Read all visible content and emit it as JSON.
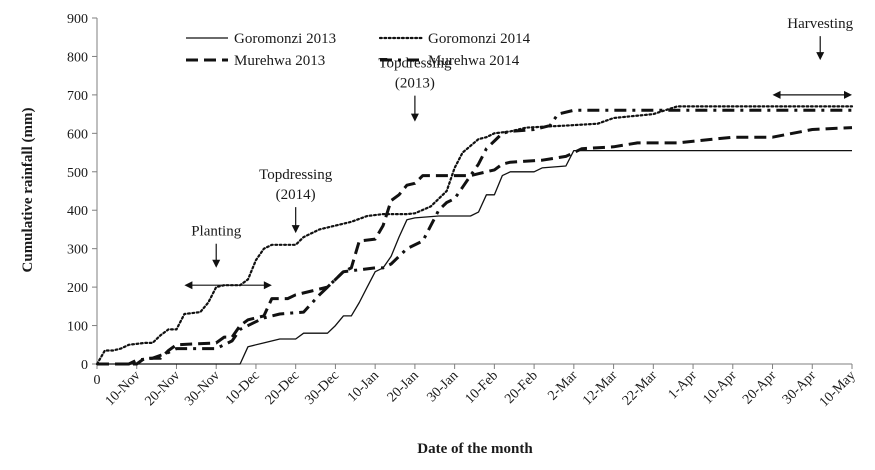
{
  "chart_data": {
    "type": "line",
    "title": "",
    "xlabel": "Date of the month",
    "ylabel": "Cumulative rainfall (mm)",
    "ylim": [
      0,
      900
    ],
    "yticks": [
      0,
      100,
      200,
      300,
      400,
      500,
      600,
      700,
      800,
      900
    ],
    "xlim": [
      0,
      190
    ],
    "xtick_labels": [
      {
        "t": 0,
        "label": "0"
      },
      {
        "t": 10,
        "label": "10-Nov"
      },
      {
        "t": 20,
        "label": "20-Nov"
      },
      {
        "t": 30,
        "label": "30-Nov"
      },
      {
        "t": 40,
        "label": "10-Dec"
      },
      {
        "t": 50,
        "label": "20-Dec"
      },
      {
        "t": 60,
        "label": "30-Dec"
      },
      {
        "t": 70,
        "label": "10-Jan"
      },
      {
        "t": 80,
        "label": "20-Jan"
      },
      {
        "t": 90,
        "label": "30-Jan"
      },
      {
        "t": 100,
        "label": "10-Feb"
      },
      {
        "t": 110,
        "label": "20-Feb"
      },
      {
        "t": 120,
        "label": "2-Mar"
      },
      {
        "t": 130,
        "label": "12-Mar"
      },
      {
        "t": 140,
        "label": "22-Mar"
      },
      {
        "t": 150,
        "label": "1-Apr"
      },
      {
        "t": 160,
        "label": "10-Apr"
      },
      {
        "t": 170,
        "label": "20-Apr"
      },
      {
        "t": 180,
        "label": "30-Apr"
      },
      {
        "t": 190,
        "label": "10-May"
      }
    ],
    "grid": false,
    "legend_position": "top",
    "series": [
      {
        "name": "Goromonzi 2013",
        "style": "solid",
        "points": [
          [
            0,
            0
          ],
          [
            36,
            0
          ],
          [
            38,
            45
          ],
          [
            42,
            55
          ],
          [
            46,
            65
          ],
          [
            50,
            65
          ],
          [
            52,
            80
          ],
          [
            58,
            80
          ],
          [
            60,
            100
          ],
          [
            62,
            125
          ],
          [
            64,
            125
          ],
          [
            66,
            160
          ],
          [
            68,
            200
          ],
          [
            70,
            240
          ],
          [
            72,
            250
          ],
          [
            74,
            280
          ],
          [
            76,
            330
          ],
          [
            78,
            375
          ],
          [
            80,
            380
          ],
          [
            86,
            385
          ],
          [
            90,
            385
          ],
          [
            94,
            385
          ],
          [
            96,
            395
          ],
          [
            98,
            440
          ],
          [
            100,
            440
          ],
          [
            102,
            490
          ],
          [
            104,
            500
          ],
          [
            110,
            500
          ],
          [
            112,
            510
          ],
          [
            118,
            515
          ],
          [
            120,
            555
          ],
          [
            130,
            555
          ],
          [
            190,
            555
          ]
        ]
      },
      {
        "name": "Goromonzi 2014",
        "style": "dotted",
        "points": [
          [
            0,
            0
          ],
          [
            2,
            35
          ],
          [
            4,
            35
          ],
          [
            6,
            40
          ],
          [
            8,
            50
          ],
          [
            12,
            55
          ],
          [
            14,
            55
          ],
          [
            16,
            75
          ],
          [
            18,
            90
          ],
          [
            20,
            90
          ],
          [
            22,
            130
          ],
          [
            26,
            135
          ],
          [
            28,
            160
          ],
          [
            30,
            200
          ],
          [
            32,
            205
          ],
          [
            36,
            205
          ],
          [
            38,
            220
          ],
          [
            40,
            270
          ],
          [
            42,
            300
          ],
          [
            44,
            310
          ],
          [
            50,
            310
          ],
          [
            52,
            330
          ],
          [
            56,
            350
          ],
          [
            60,
            360
          ],
          [
            64,
            370
          ],
          [
            68,
            385
          ],
          [
            72,
            390
          ],
          [
            76,
            390
          ],
          [
            78,
            390
          ],
          [
            80,
            392
          ],
          [
            84,
            410
          ],
          [
            88,
            450
          ],
          [
            90,
            510
          ],
          [
            92,
            550
          ],
          [
            96,
            585
          ],
          [
            98,
            590
          ],
          [
            100,
            600
          ],
          [
            104,
            605
          ],
          [
            108,
            615
          ],
          [
            118,
            620
          ],
          [
            126,
            625
          ],
          [
            130,
            640
          ],
          [
            140,
            650
          ],
          [
            146,
            670
          ],
          [
            190,
            670
          ]
        ]
      },
      {
        "name": "Murehwa 2013",
        "style": "dashed",
        "points": [
          [
            0,
            0
          ],
          [
            10,
            0
          ],
          [
            12,
            15
          ],
          [
            16,
            15
          ],
          [
            18,
            35
          ],
          [
            20,
            50
          ],
          [
            30,
            55
          ],
          [
            32,
            70
          ],
          [
            34,
            70
          ],
          [
            36,
            100
          ],
          [
            38,
            115
          ],
          [
            42,
            125
          ],
          [
            44,
            170
          ],
          [
            48,
            170
          ],
          [
            50,
            180
          ],
          [
            54,
            190
          ],
          [
            58,
            200
          ],
          [
            62,
            240
          ],
          [
            64,
            250
          ],
          [
            66,
            320
          ],
          [
            70,
            325
          ],
          [
            72,
            360
          ],
          [
            74,
            425
          ],
          [
            76,
            440
          ],
          [
            78,
            465
          ],
          [
            80,
            470
          ],
          [
            82,
            490
          ],
          [
            94,
            490
          ],
          [
            96,
            495
          ],
          [
            98,
            500
          ],
          [
            100,
            505
          ],
          [
            102,
            520
          ],
          [
            104,
            525
          ],
          [
            112,
            530
          ],
          [
            118,
            540
          ],
          [
            120,
            550
          ],
          [
            122,
            560
          ],
          [
            130,
            565
          ],
          [
            136,
            575
          ],
          [
            146,
            575
          ],
          [
            160,
            590
          ],
          [
            170,
            590
          ],
          [
            180,
            610
          ],
          [
            190,
            615
          ]
        ]
      },
      {
        "name": "Murehwa 2014",
        "style": "dashdot",
        "points": [
          [
            0,
            0
          ],
          [
            8,
            0
          ],
          [
            10,
            10
          ],
          [
            14,
            15
          ],
          [
            18,
            30
          ],
          [
            20,
            40
          ],
          [
            30,
            40
          ],
          [
            34,
            60
          ],
          [
            36,
            90
          ],
          [
            40,
            110
          ],
          [
            42,
            120
          ],
          [
            46,
            130
          ],
          [
            52,
            135
          ],
          [
            56,
            180
          ],
          [
            58,
            200
          ],
          [
            62,
            240
          ],
          [
            66,
            245
          ],
          [
            70,
            250
          ],
          [
            72,
            250
          ],
          [
            74,
            260
          ],
          [
            78,
            300
          ],
          [
            82,
            320
          ],
          [
            84,
            360
          ],
          [
            86,
            400
          ],
          [
            88,
            420
          ],
          [
            90,
            430
          ],
          [
            92,
            460
          ],
          [
            94,
            490
          ],
          [
            96,
            520
          ],
          [
            98,
            560
          ],
          [
            100,
            580
          ],
          [
            102,
            600
          ],
          [
            104,
            605
          ],
          [
            110,
            610
          ],
          [
            114,
            620
          ],
          [
            116,
            650
          ],
          [
            120,
            660
          ],
          [
            128,
            660
          ],
          [
            136,
            660
          ],
          [
            190,
            660
          ]
        ]
      }
    ],
    "annotations": [
      {
        "text": "Planting",
        "t": 30,
        "y": 240,
        "arrow": "down"
      },
      {
        "text": "Topdressing",
        "text2": "(2014)",
        "t": 50,
        "y": 330,
        "arrow": "down"
      },
      {
        "text": "Topdressing",
        "text2": "(2013)",
        "t": 80,
        "y": 620,
        "arrow": "down"
      },
      {
        "text": "Harvesting",
        "t": 182,
        "y": 780,
        "arrow": "down"
      }
    ],
    "spans": [
      {
        "t0": 22,
        "t1": 44,
        "y": 205
      },
      {
        "t0": 170,
        "t1": 190,
        "y": 700
      }
    ]
  }
}
